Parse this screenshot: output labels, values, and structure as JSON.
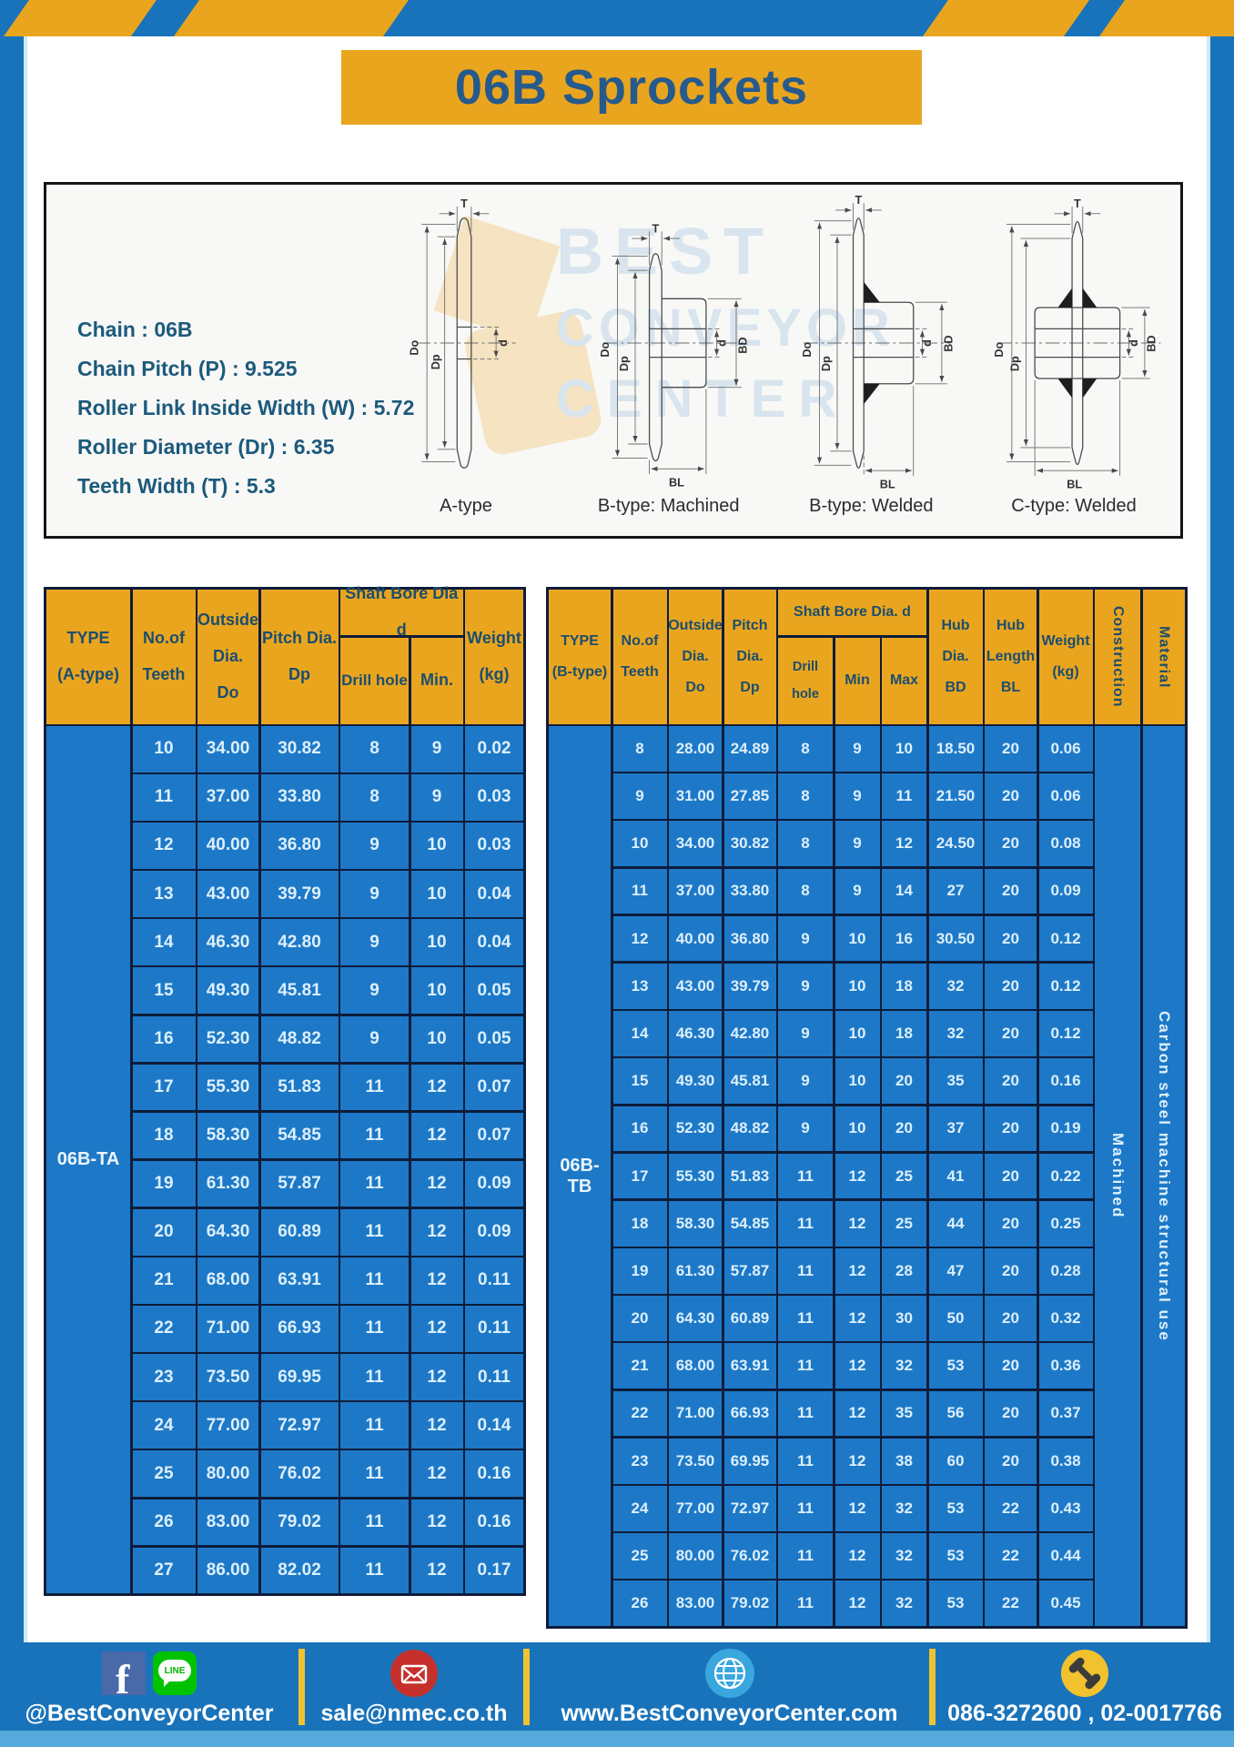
{
  "title": "06B Sprockets",
  "specs": {
    "lines": [
      "Chain  : 06B",
      "Chain Pitch (P)  :  9.525",
      "Roller Link Inside Width (W)  :  5.72",
      "Roller Diameter (Dr)  : 6.35",
      "Teeth Width (T)  :  5.3"
    ]
  },
  "watermark": {
    "line1": "BEST",
    "line2": "CONVEYOR",
    "line3": "CENTER"
  },
  "diagrams": {
    "labels": [
      "A-type",
      "B-type: Machined",
      "B-type: Welded",
      "C-type: Welded"
    ],
    "dims": {
      "t": "T",
      "outside": "Do",
      "pitch": "Dp",
      "bore": "d",
      "hub": "BD",
      "hublen": "BL"
    }
  },
  "table_a": {
    "headers": {
      "type": "TYPE\n(A-type)",
      "teeth": "No.of\nTeeth",
      "outside": "Outside\nDia.\nDo",
      "pitch": "Pitch Dia.\nDp",
      "shaft_group": "Shaft Bore Dia d",
      "drill": "Drill hole",
      "min": "Min.",
      "weight": "Weight\n(kg)"
    },
    "type_label": "06B-TA",
    "rows": [
      [
        "10",
        "34.00",
        "30.82",
        "8",
        "9",
        "0.02"
      ],
      [
        "11",
        "37.00",
        "33.80",
        "8",
        "9",
        "0.03"
      ],
      [
        "12",
        "40.00",
        "36.80",
        "9",
        "10",
        "0.03"
      ],
      [
        "13",
        "43.00",
        "39.79",
        "9",
        "10",
        "0.04"
      ],
      [
        "14",
        "46.30",
        "42.80",
        "9",
        "10",
        "0.04"
      ],
      [
        "15",
        "49.30",
        "45.81",
        "9",
        "10",
        "0.05"
      ],
      [
        "16",
        "52.30",
        "48.82",
        "9",
        "10",
        "0.05"
      ],
      [
        "17",
        "55.30",
        "51.83",
        "11",
        "12",
        "0.07"
      ],
      [
        "18",
        "58.30",
        "54.85",
        "11",
        "12",
        "0.07"
      ],
      [
        "19",
        "61.30",
        "57.87",
        "11",
        "12",
        "0.09"
      ],
      [
        "20",
        "64.30",
        "60.89",
        "11",
        "12",
        "0.09"
      ],
      [
        "21",
        "68.00",
        "63.91",
        "11",
        "12",
        "0.11"
      ],
      [
        "22",
        "71.00",
        "66.93",
        "11",
        "12",
        "0.11"
      ],
      [
        "23",
        "73.50",
        "69.95",
        "11",
        "12",
        "0.11"
      ],
      [
        "24",
        "77.00",
        "72.97",
        "11",
        "12",
        "0.14"
      ],
      [
        "25",
        "80.00",
        "76.02",
        "11",
        "12",
        "0.16"
      ],
      [
        "26",
        "83.00",
        "79.02",
        "11",
        "12",
        "0.16"
      ],
      [
        "27",
        "86.00",
        "82.02",
        "11",
        "12",
        "0.17"
      ]
    ]
  },
  "table_b": {
    "headers": {
      "type": "TYPE\n(B-type)",
      "teeth": "No.of\nTeeth",
      "outside": "Outside\nDia.\nDo",
      "pitch": "Pitch\nDia.\nDp",
      "shaft_group": "Shaft Bore Dia.  d",
      "drill": "Drill hole",
      "min": "Min",
      "max": "Max",
      "hub_dia": "Hub\nDia.\nBD",
      "hub_len": "Hub\nLength\nBL",
      "weight": "Weight\n(kg)",
      "construction": "Construction",
      "material": "Material"
    },
    "type_label": "06B-TB",
    "construction_value": "Machined",
    "material_value": "Carbon  steel  machine  structural  use",
    "rows": [
      [
        "8",
        "28.00",
        "24.89",
        "8",
        "9",
        "10",
        "18.50",
        "20",
        "0.06"
      ],
      [
        "9",
        "31.00",
        "27.85",
        "8",
        "9",
        "11",
        "21.50",
        "20",
        "0.06"
      ],
      [
        "10",
        "34.00",
        "30.82",
        "8",
        "9",
        "12",
        "24.50",
        "20",
        "0.08"
      ],
      [
        "11",
        "37.00",
        "33.80",
        "8",
        "9",
        "14",
        "27",
        "20",
        "0.09"
      ],
      [
        "12",
        "40.00",
        "36.80",
        "9",
        "10",
        "16",
        "30.50",
        "20",
        "0.12"
      ],
      [
        "13",
        "43.00",
        "39.79",
        "9",
        "10",
        "18",
        "32",
        "20",
        "0.12"
      ],
      [
        "14",
        "46.30",
        "42.80",
        "9",
        "10",
        "18",
        "32",
        "20",
        "0.12"
      ],
      [
        "15",
        "49.30",
        "45.81",
        "9",
        "10",
        "20",
        "35",
        "20",
        "0.16"
      ],
      [
        "16",
        "52.30",
        "48.82",
        "9",
        "10",
        "20",
        "37",
        "20",
        "0.19"
      ],
      [
        "17",
        "55.30",
        "51.83",
        "11",
        "12",
        "25",
        "41",
        "20",
        "0.22"
      ],
      [
        "18",
        "58.30",
        "54.85",
        "11",
        "12",
        "25",
        "44",
        "20",
        "0.25"
      ],
      [
        "19",
        "61.30",
        "57.87",
        "11",
        "12",
        "28",
        "47",
        "20",
        "0.28"
      ],
      [
        "20",
        "64.30",
        "60.89",
        "11",
        "12",
        "30",
        "50",
        "20",
        "0.32"
      ],
      [
        "21",
        "68.00",
        "63.91",
        "11",
        "12",
        "32",
        "53",
        "20",
        "0.36"
      ],
      [
        "22",
        "71.00",
        "66.93",
        "11",
        "12",
        "35",
        "56",
        "20",
        "0.37"
      ],
      [
        "23",
        "73.50",
        "69.95",
        "11",
        "12",
        "38",
        "60",
        "20",
        "0.38"
      ],
      [
        "24",
        "77.00",
        "72.97",
        "11",
        "12",
        "32",
        "53",
        "22",
        "0.43"
      ],
      [
        "25",
        "80.00",
        "76.02",
        "11",
        "12",
        "32",
        "53",
        "22",
        "0.44"
      ],
      [
        "26",
        "83.00",
        "79.02",
        "11",
        "12",
        "32",
        "53",
        "22",
        "0.45"
      ]
    ]
  },
  "footer": {
    "facebook_handle": "@BestConveyorCenter",
    "email": "sale@nmec.co.th",
    "website": "www.BestConveyorCenter.com",
    "phone": "086-3272600 , 02-0017766",
    "icons": {
      "facebook": "f",
      "line": "LINE"
    }
  },
  "colors": {
    "frame_blue": "#1973bb",
    "cell_blue": "#1d79c7",
    "accent_yellow": "#eaa51e",
    "border_navy": "#0e1c3a",
    "header_text": "#1c4e6e",
    "title_text": "#265a8c",
    "footer_strip_blue": "#56aadb"
  }
}
